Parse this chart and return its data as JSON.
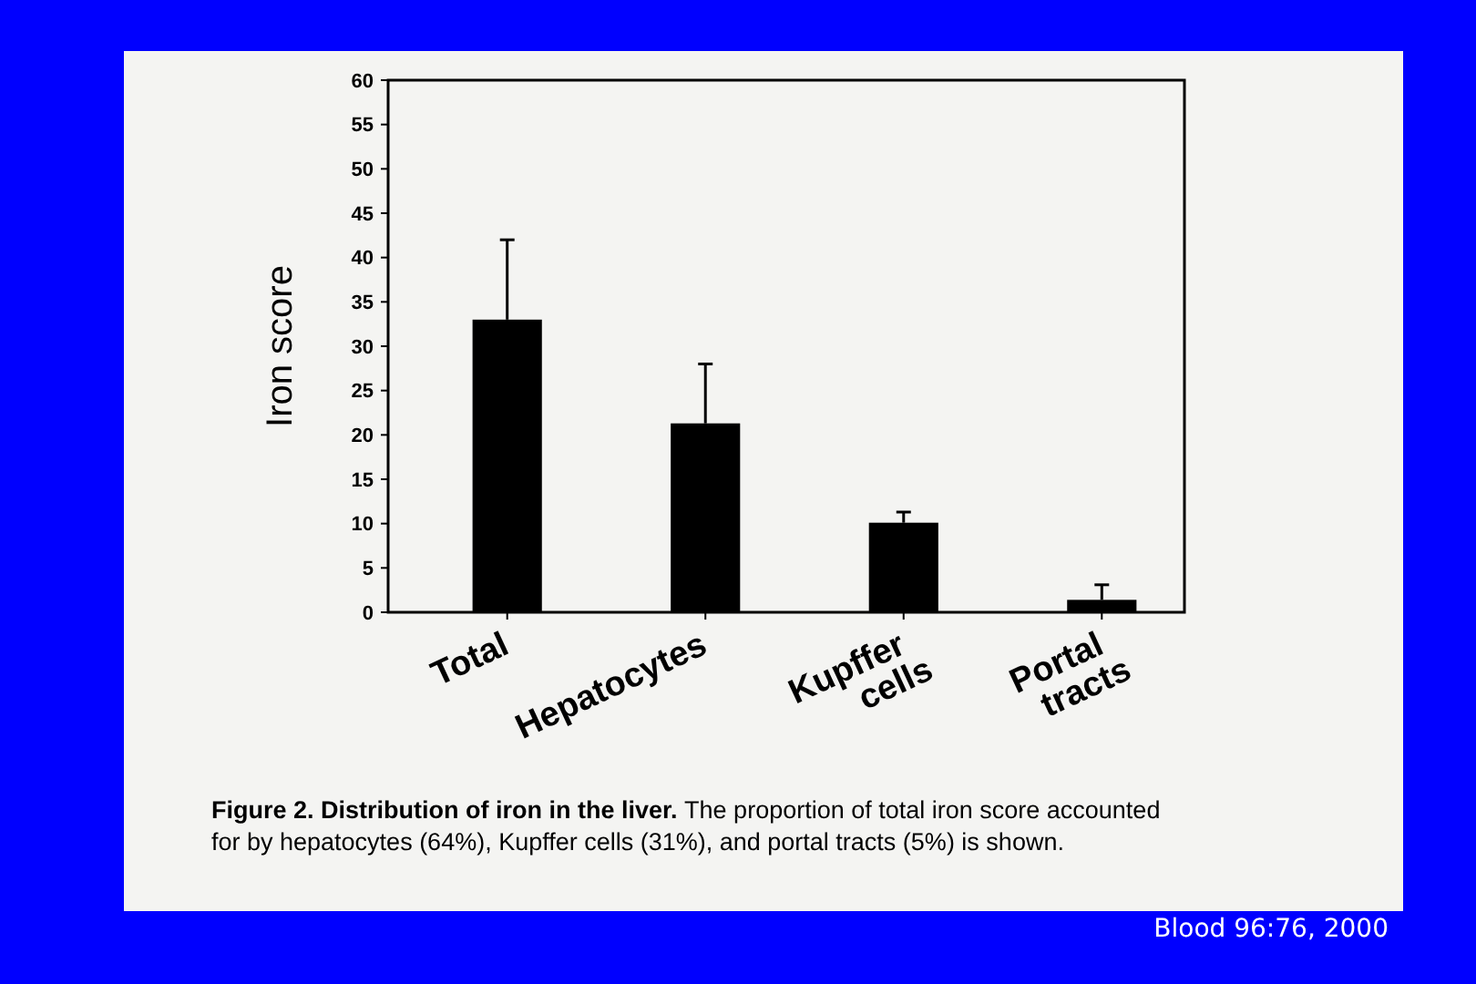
{
  "chart_data": {
    "type": "bar",
    "title": "Figure 2. Distribution of iron in the liver.",
    "ylabel": "Iron score",
    "categories": [
      "Total",
      "Hepatocytes",
      "Kupffer cells",
      "Portal tracts"
    ],
    "values": [
      33,
      21.3,
      10.1,
      1.4
    ],
    "errors": [
      [
        33,
        42
      ],
      [
        21.3,
        28
      ],
      [
        10.1,
        11.3
      ],
      [
        1.4,
        3.1
      ]
    ],
    "color": "#000000",
    "ylim": [
      0,
      60
    ],
    "yticks": [
      0,
      5,
      10,
      15,
      20,
      25,
      30,
      35,
      40,
      45,
      50,
      55,
      60
    ],
    "grid": false,
    "annotations": [
      "The proportion of total iron score accounted for by hepatocytes (64%), Kupffer cells (31%), and portal tracts (5%) is shown.",
      "Blood 96:76, 2000"
    ]
  }
}
